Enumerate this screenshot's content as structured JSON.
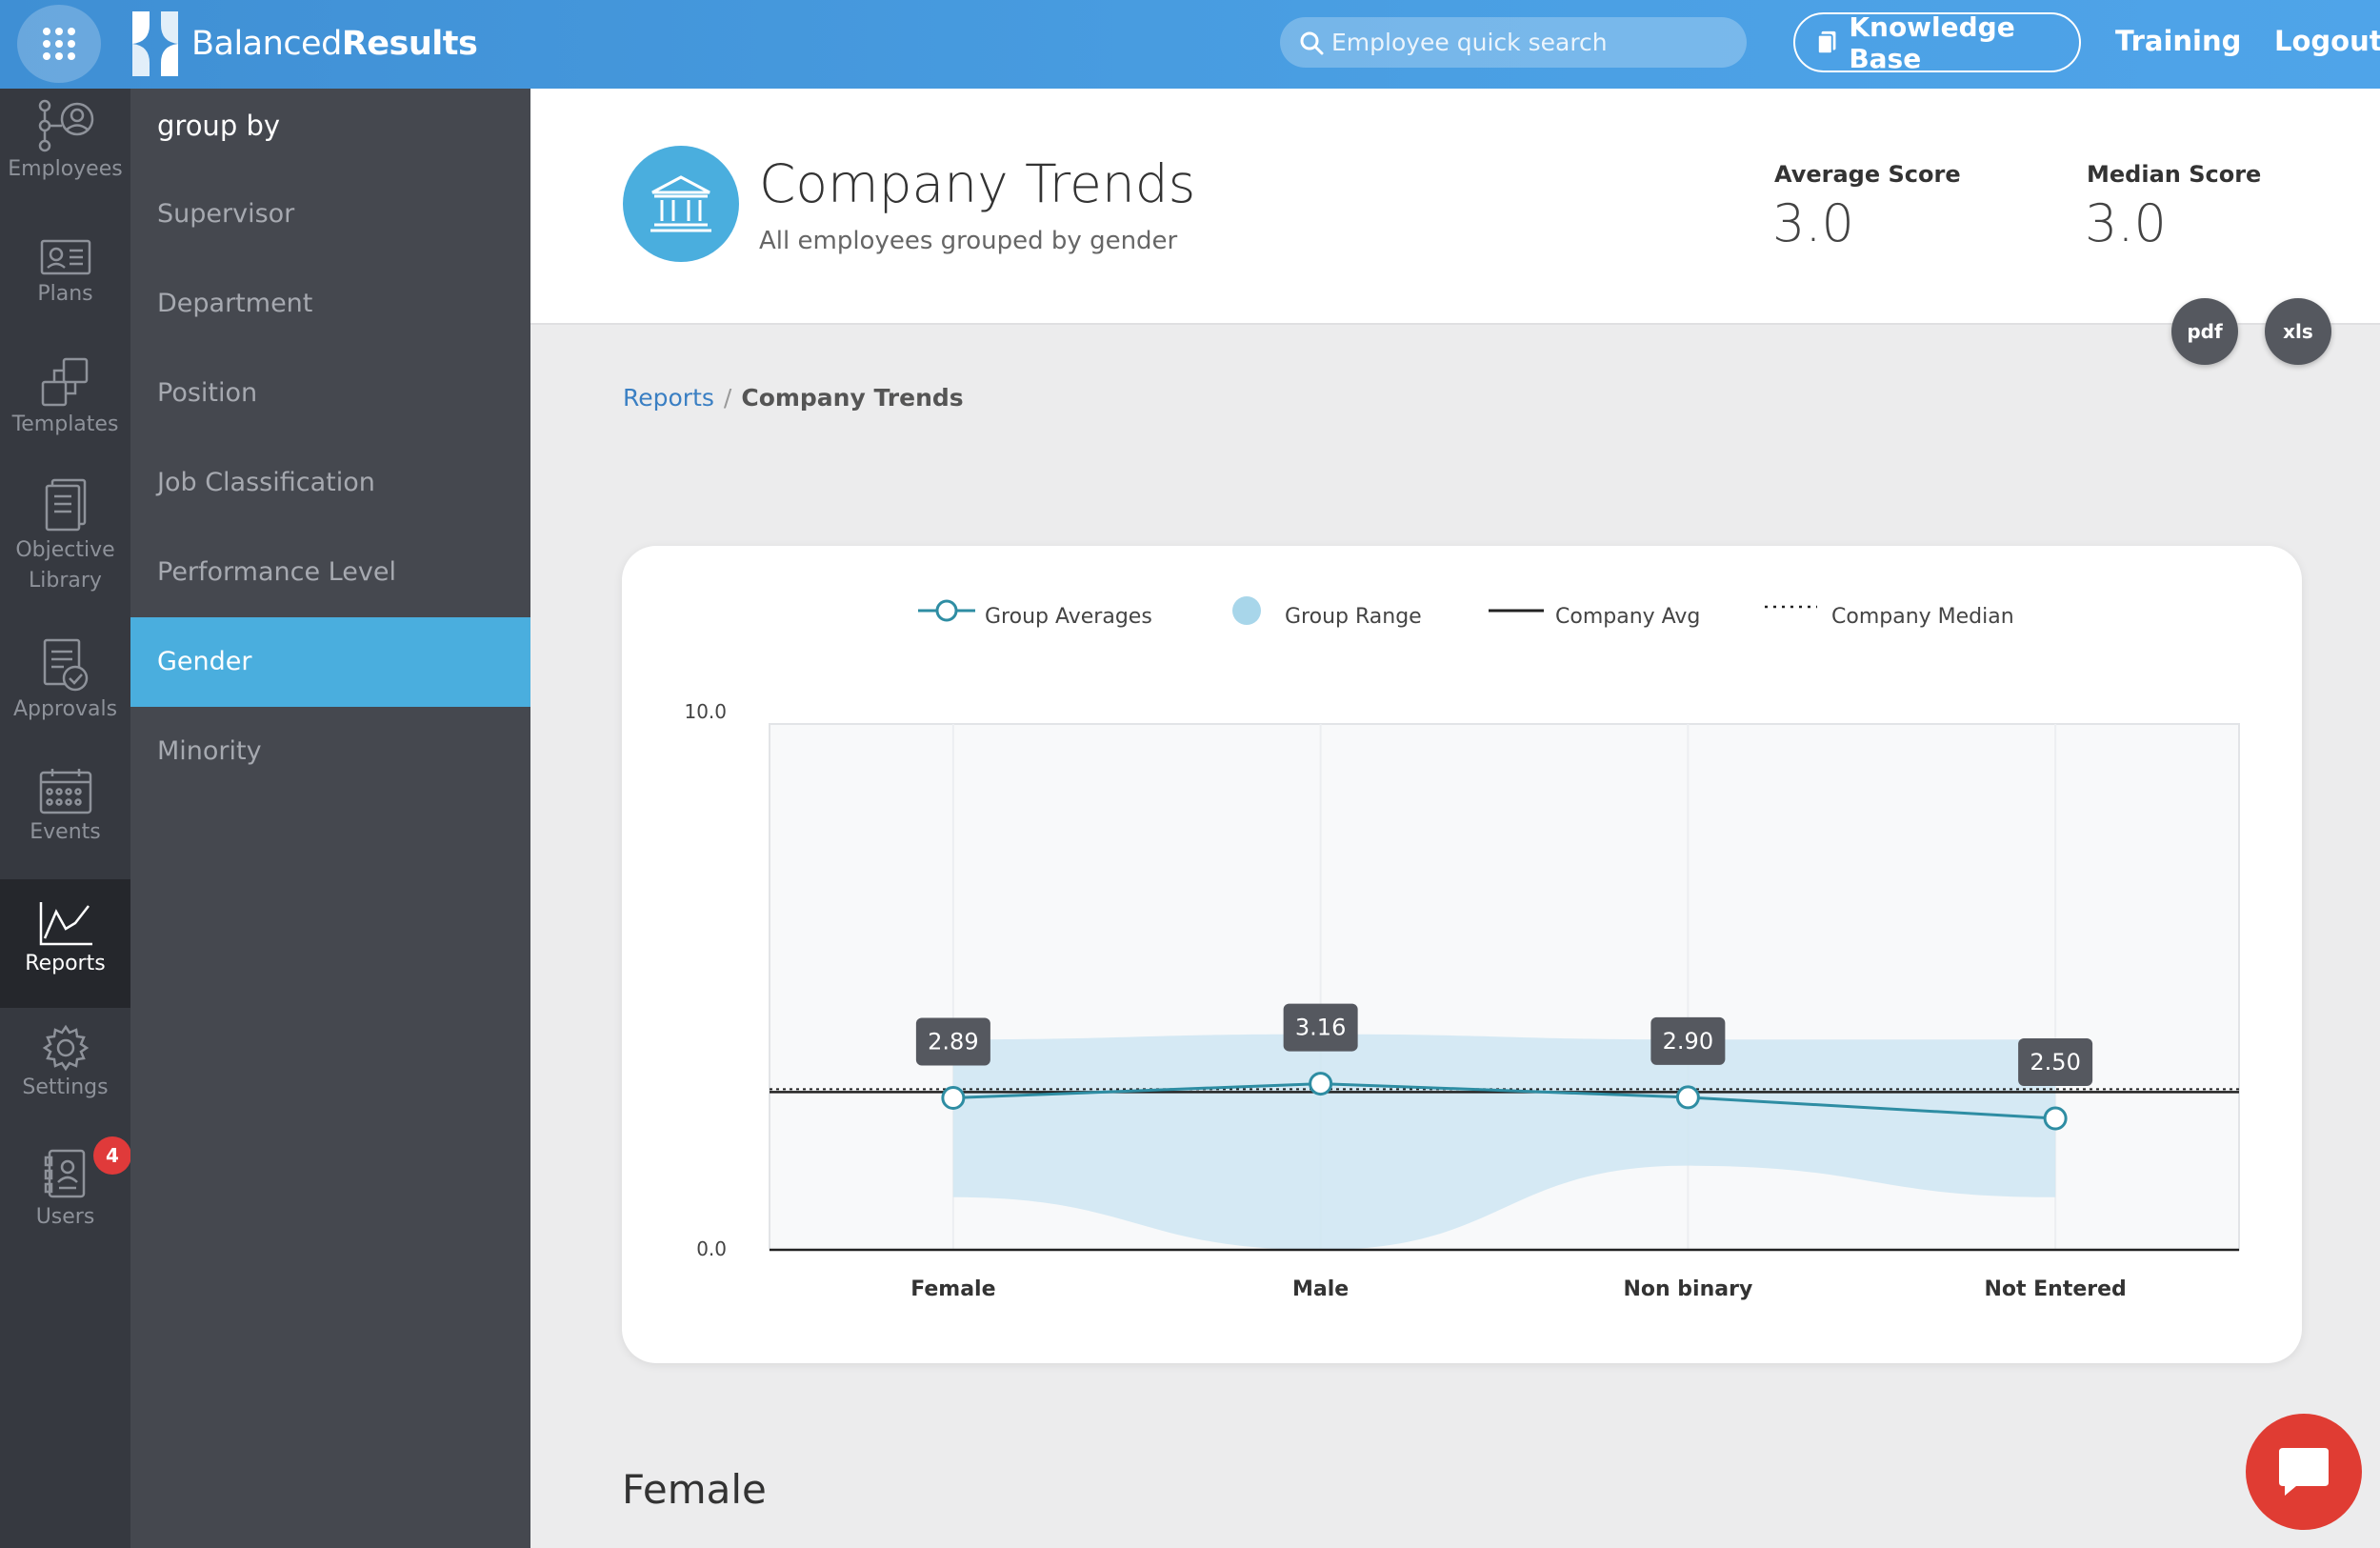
{
  "topbar": {
    "logo_light": "Balanced",
    "logo_bold": "Results",
    "search_placeholder": "Employee quick search",
    "knowledge_base": "Knowledge Base",
    "training": "Training",
    "logout": "Logout"
  },
  "nav": {
    "employees": "Employees",
    "plans": "Plans",
    "templates": "Templates",
    "objective_1": "Objective",
    "objective_2": "Library",
    "approvals": "Approvals",
    "events": "Events",
    "reports": "Reports",
    "settings": "Settings",
    "users": "Users",
    "users_badge": "4"
  },
  "groupby": {
    "title": "group by",
    "items": [
      "Supervisor",
      "Department",
      "Position",
      "Job Classification",
      "Performance Level",
      "Gender",
      "Minority"
    ],
    "active": "Gender"
  },
  "header": {
    "title": "Company Trends",
    "subtitle": "All employees grouped by gender",
    "avg_label": "Average Score",
    "avg_value": "3.0",
    "median_label": "Median Score",
    "median_value": "3.0",
    "pdf": "pdf",
    "xls": "xls"
  },
  "breadcrumb": {
    "reports": "Reports",
    "sep": "/",
    "current": "Company Trends"
  },
  "section_title": "Female",
  "colors": {
    "accent": "#4aaede",
    "line": "#2e8da3",
    "range": "#cfe6f2"
  },
  "chart_data": {
    "type": "line",
    "categories": [
      "Female",
      "Male",
      "Non binary",
      "Not Entered"
    ],
    "ylim": [
      0,
      10
    ],
    "y_ticks": [
      "0.0",
      "10.0"
    ],
    "legend": [
      "Group Averages",
      "Group Range",
      "Company Avg",
      "Company Median"
    ],
    "legend_position": "top",
    "series": [
      {
        "name": "Group Averages",
        "values": [
          2.89,
          3.16,
          2.9,
          2.5
        ],
        "labels": [
          "2.89",
          "3.16",
          "2.90",
          "2.50"
        ]
      }
    ],
    "range": {
      "low": [
        1.0,
        0.0,
        1.6,
        1.0
      ],
      "high": [
        4.0,
        4.1,
        4.0,
        4.0
      ]
    },
    "company_avg": 3.0,
    "company_median": 3.0
  }
}
